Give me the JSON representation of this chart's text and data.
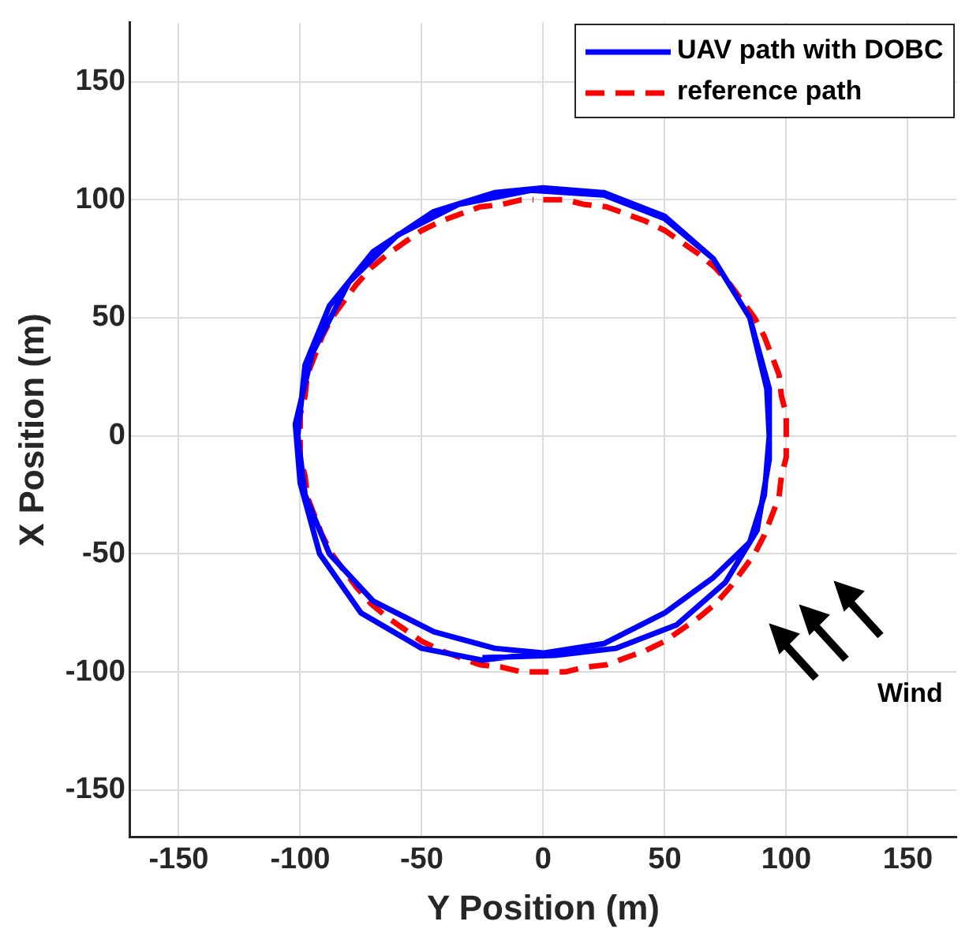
{
  "chart_data": {
    "type": "line",
    "xlabel": "Y Position (m)",
    "ylabel": "X Position (m)",
    "xlim": [
      -170,
      170
    ],
    "ylim": [
      -170,
      175
    ],
    "xticks": [
      -150,
      -100,
      -50,
      0,
      50,
      100,
      150
    ],
    "yticks": [
      -150,
      -100,
      -50,
      0,
      50,
      100,
      150
    ],
    "grid": true,
    "legend": "top right",
    "marker": "none",
    "annotations": [
      "Wind"
    ],
    "series": [
      {
        "name": "UAV path with DOBC",
        "color": "#0000ff",
        "line_style": "solid",
        "x": [
          0,
          -20,
          -45,
          -70,
          -88,
          -98,
          -101,
          -98,
          -88,
          -70,
          -45,
          -20,
          0,
          25,
          50,
          70,
          85,
          92,
          93,
          91,
          85,
          70,
          50,
          25,
          0,
          -25,
          -50,
          -75,
          -92,
          -100,
          -102,
          -95,
          -80,
          -60,
          -35,
          -5,
          25,
          50,
          70,
          85,
          93,
          93,
          88,
          75,
          55,
          30,
          5,
          -25
        ],
        "values": [
          -92,
          -90,
          -83,
          -70,
          -50,
          -25,
          0,
          30,
          55,
          78,
          95,
          103,
          105,
          103,
          93,
          75,
          50,
          20,
          0,
          -25,
          -45,
          -60,
          -75,
          -88,
          -92,
          -95,
          -90,
          -75,
          -50,
          -20,
          5,
          35,
          65,
          85,
          98,
          104,
          102,
          92,
          75,
          50,
          20,
          -10,
          -40,
          -62,
          -80,
          -90,
          -93,
          -94
        ]
      },
      {
        "name": "reference path",
        "color": "#ff0000",
        "line_style": "dashed",
        "x": [
          0,
          9,
          17,
          26,
          34,
          42,
          50,
          57,
          64,
          71,
          77,
          82,
          87,
          91,
          94,
          97,
          98,
          100,
          100,
          100,
          98,
          97,
          94,
          91,
          87,
          82,
          77,
          71,
          64,
          57,
          50,
          42,
          34,
          26,
          17,
          9,
          0,
          -9,
          -17,
          -26,
          -34,
          -42,
          -50,
          -57,
          -64,
          -71,
          -77,
          -82,
          -87,
          -91,
          -94,
          -97,
          -98,
          -100,
          -100,
          -100,
          -98,
          -97,
          -94,
          -91,
          -87,
          -82,
          -77,
          -71,
          -64,
          -57,
          -50,
          -42,
          -34,
          -26,
          -17,
          -9,
          -4
        ],
        "values": [
          100,
          100,
          98,
          97,
          94,
          91,
          87,
          82,
          77,
          71,
          64,
          57,
          50,
          42,
          34,
          26,
          17,
          9,
          0,
          -9,
          -17,
          -26,
          -34,
          -42,
          -50,
          -57,
          -64,
          -71,
          -77,
          -82,
          -87,
          -91,
          -94,
          -97,
          -98,
          -100,
          -100,
          -100,
          -98,
          -97,
          -94,
          -91,
          -87,
          -82,
          -77,
          -71,
          -64,
          -57,
          -50,
          -42,
          -34,
          -26,
          -17,
          -9,
          0,
          9,
          17,
          26,
          34,
          42,
          50,
          57,
          64,
          71,
          77,
          82,
          87,
          91,
          94,
          97,
          98,
          100,
          100
        ]
      }
    ]
  }
}
